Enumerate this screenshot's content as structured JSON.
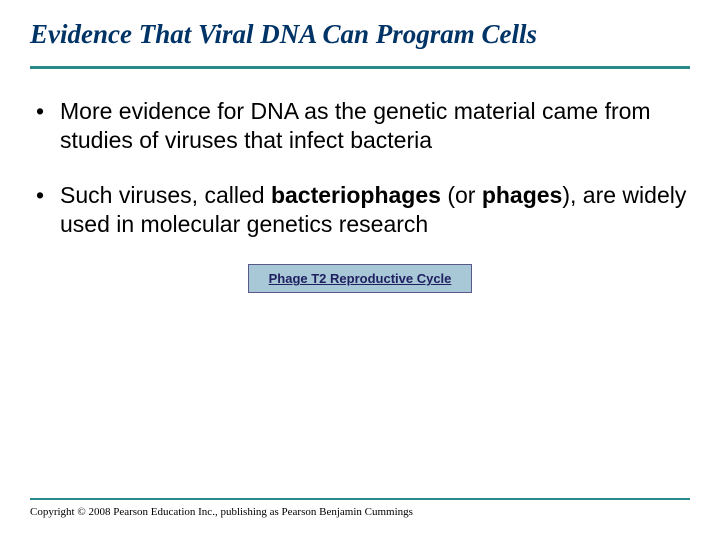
{
  "colors": {
    "title_color": "#003366",
    "rule_color": "#2a8a8a",
    "button_bg": "#a8c8d8",
    "button_border": "#5a5a88",
    "button_text": "#202060",
    "body_text": "#000000",
    "background": "#ffffff"
  },
  "typography": {
    "title_font": "Times New Roman",
    "title_size_pt": 20,
    "title_weight": "bold",
    "title_style": "italic",
    "body_font": "Arial",
    "body_size_pt": 17,
    "button_size_pt": 10,
    "copyright_font": "Times New Roman",
    "copyright_size_pt": 8
  },
  "title": "Evidence That Viral DNA Can Program Cells",
  "bullets": [
    {
      "pre": "More evidence for DNA as the genetic material came from studies of viruses that infect bacteria",
      "bold1": "",
      "mid": "",
      "bold2": "",
      "post": ""
    },
    {
      "pre": "Such viruses, called ",
      "bold1": "bacteriophages",
      "mid": " (or ",
      "bold2": "phages",
      "post": "), are widely used in molecular genetics research"
    }
  ],
  "button": {
    "label": "Phage T2 Reproductive Cycle"
  },
  "copyright": "Copyright © 2008 Pearson Education Inc., publishing as Pearson Benjamin Cummings"
}
